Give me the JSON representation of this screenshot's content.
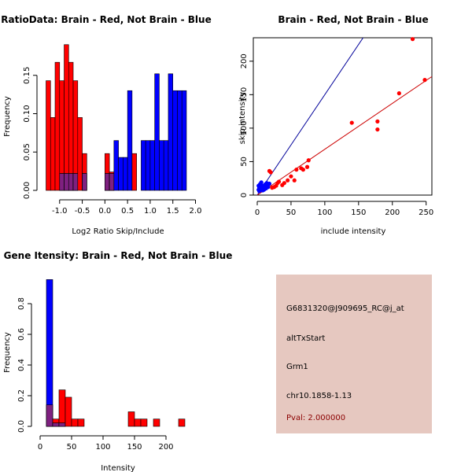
{
  "colors": {
    "red": "#ff0000",
    "blue": "#0000ff",
    "overlap": "#7f2080",
    "line_red": "#cc0000",
    "line_blue": "#000099",
    "info_bg": "#e6c8c0",
    "pval": "#8b0000"
  },
  "chart_data": [
    {
      "id": "ratio-hist",
      "type": "bar",
      "title": "RatioData: Brain - Red, Not Brain - Blue",
      "xlabel": "Log2 Ratio Skip/Include",
      "ylabel": "Frequency",
      "xlim": [
        -1.3,
        2.0
      ],
      "ylim": [
        0,
        0.2
      ],
      "xticks": [
        -1.0,
        -0.5,
        0.0,
        0.5,
        1.0,
        1.5,
        2.0
      ],
      "xtick_labels": [
        "-1.0",
        "-0.5",
        "0.0",
        "0.5",
        "1.0",
        "1.5",
        "2.0"
      ],
      "yticks": [
        0.0,
        0.05,
        0.1,
        0.15
      ],
      "ytick_labels": [
        "0.00",
        "0.05",
        "0.10",
        "0.15"
      ],
      "bin_width": 0.1,
      "series": [
        {
          "name": "Brain",
          "color": "red",
          "bin_starts": [
            -1.3,
            -1.2,
            -1.1,
            -1.0,
            -0.9,
            -0.8,
            -0.7,
            -0.6,
            -0.5,
            -0.4,
            -0.3,
            -0.2,
            -0.1,
            0.0,
            0.1,
            0.2,
            0.3,
            0.4,
            0.5,
            0.6,
            0.7
          ],
          "values": [
            0.143,
            0.095,
            0.167,
            0.143,
            0.19,
            0.167,
            0.143,
            0.095,
            0.048,
            0.0,
            0.0,
            0.0,
            0.0,
            0.048,
            0.024,
            0.0,
            0.0,
            0.0,
            0.0,
            0.048,
            0.0
          ]
        },
        {
          "name": "Not Brain",
          "color": "blue",
          "bin_starts": [
            -1.3,
            -1.2,
            -1.1,
            -1.0,
            -0.9,
            -0.8,
            -0.7,
            -0.6,
            -0.5,
            -0.4,
            -0.3,
            -0.2,
            -0.1,
            0.0,
            0.1,
            0.2,
            0.3,
            0.4,
            0.5,
            0.6,
            0.7,
            0.8,
            0.9,
            1.0,
            1.1,
            1.2,
            1.3,
            1.4,
            1.5,
            1.6,
            1.7
          ],
          "values": [
            0.0,
            0.0,
            0.0,
            0.022,
            0.022,
            0.022,
            0.022,
            0.0,
            0.022,
            0.0,
            0.0,
            0.0,
            0.0,
            0.022,
            0.022,
            0.065,
            0.043,
            0.043,
            0.13,
            0.0,
            0.0,
            0.065,
            0.065,
            0.065,
            0.152,
            0.065,
            0.065,
            0.152,
            0.13,
            0.13,
            0.13
          ]
        }
      ]
    },
    {
      "id": "scatter",
      "type": "scatter",
      "title": "Brain - Red, Not Brain - Blue",
      "xlabel": "include intensity",
      "ylabel": "skip intensity",
      "xlim": [
        0,
        255
      ],
      "ylim": [
        0,
        235
      ],
      "xticks": [
        0,
        50,
        100,
        150,
        200,
        250
      ],
      "yticks": [
        0,
        50,
        100,
        150,
        200
      ],
      "series": [
        {
          "name": "Brain",
          "color": "red",
          "x": [
            230,
            248,
            210,
            140,
            178,
            178,
            76,
            74,
            68,
            65,
            58,
            55,
            50,
            40,
            37,
            32,
            28,
            25,
            22,
            20,
            18,
            30,
            45,
            15,
            12
          ],
          "y": [
            233,
            172,
            152,
            108,
            110,
            98,
            52,
            42,
            38,
            40,
            38,
            22,
            28,
            18,
            15,
            20,
            14,
            12,
            11,
            34,
            36,
            18,
            22,
            14,
            10
          ]
        },
        {
          "name": "Not Brain",
          "color": "blue",
          "x": [
            2,
            4,
            5,
            6,
            8,
            10,
            12,
            14,
            3,
            7,
            9,
            11,
            15,
            5,
            2,
            6,
            8,
            13,
            18,
            4,
            10,
            3,
            7,
            16
          ],
          "y": [
            8,
            12,
            15,
            10,
            14,
            12,
            16,
            18,
            6,
            9,
            11,
            13,
            15,
            17,
            14,
            19,
            7,
            10,
            17,
            16,
            8,
            11,
            13,
            12
          ]
        }
      ],
      "fit_lines": [
        {
          "color": "blue",
          "slope": 1.5,
          "intercept": 0
        },
        {
          "color": "red",
          "slope": 0.685,
          "intercept": 0
        }
      ]
    },
    {
      "id": "intensity-hist",
      "type": "bar",
      "title": "Gene Itensity: Brain - Red, Not Brain - Blue",
      "xlabel": "Intensity",
      "ylabel": "Frequency",
      "xlim": [
        0,
        240
      ],
      "ylim": [
        0,
        1.0
      ],
      "xticks": [
        0,
        50,
        100,
        150,
        200
      ],
      "yticks": [
        0.0,
        0.2,
        0.4,
        0.6,
        0.8
      ],
      "ytick_labels": [
        "0.0",
        "0.2",
        "0.4",
        "0.6",
        "0.8"
      ],
      "bin_width": 10,
      "series": [
        {
          "name": "Brain",
          "color": "red",
          "bin_starts": [
            10,
            20,
            30,
            40,
            50,
            60,
            140,
            150,
            160,
            180,
            220
          ],
          "values": [
            0.14,
            0.048,
            0.238,
            0.19,
            0.048,
            0.048,
            0.095,
            0.048,
            0.048,
            0.048,
            0.048
          ]
        },
        {
          "name": "Not Brain",
          "color": "blue",
          "bin_starts": [
            10,
            20,
            30
          ],
          "values": [
            0.957,
            0.022,
            0.022
          ]
        }
      ]
    }
  ],
  "info": {
    "probe": "G6831320@J909695_RC@j_at",
    "event": "altTxStart",
    "gene": "Grm1",
    "chr": "chr10.1858-1.13",
    "pval": "Pval: 2.000000"
  }
}
